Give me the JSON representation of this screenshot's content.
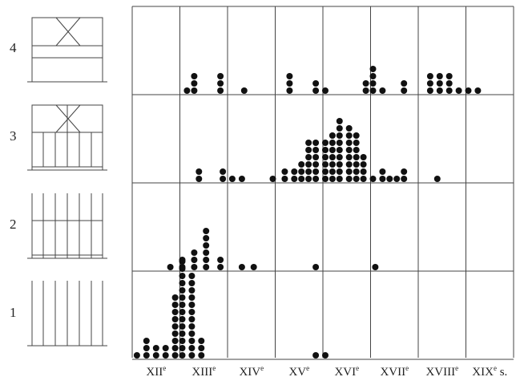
{
  "chart_data": {
    "type": "scatter",
    "subtype": "dot-histogram",
    "title": "",
    "xlabel": "",
    "ylabel": "",
    "rows": [
      "1",
      "2",
      "3",
      "4"
    ],
    "columns": [
      {
        "label": "XII",
        "sup": "e"
      },
      {
        "label": "XIII",
        "sup": "e"
      },
      {
        "label": "XIV",
        "sup": "e"
      },
      {
        "label": "XV",
        "sup": "e"
      },
      {
        "label": "XVI",
        "sup": "e"
      },
      {
        "label": "XVII",
        "sup": "e"
      },
      {
        "label": "XVIII",
        "sup": "e"
      },
      {
        "label": "XIX",
        "sup": "e",
        "suffix": " s."
      }
    ],
    "x_unit_note": "positions are in century units: 0 = start of XII, 8 = end of XIX",
    "series": [
      {
        "row": "1",
        "stacks": [
          {
            "x": 0.1,
            "count": 1
          },
          {
            "x": 0.3,
            "count": 3
          },
          {
            "x": 0.5,
            "count": 2
          },
          {
            "x": 0.7,
            "count": 2
          },
          {
            "x": 0.9,
            "count": 9
          },
          {
            "x": 1.05,
            "count": 14
          },
          {
            "x": 1.25,
            "count": 12
          },
          {
            "x": 1.45,
            "count": 3
          },
          {
            "x": 3.85,
            "count": 1
          },
          {
            "x": 4.05,
            "count": 1
          }
        ]
      },
      {
        "row": "2",
        "stacks": [
          {
            "x": 0.8,
            "count": 1
          },
          {
            "x": 1.05,
            "count": 2
          },
          {
            "x": 1.3,
            "count": 3
          },
          {
            "x": 1.55,
            "count": 6
          },
          {
            "x": 1.85,
            "count": 2
          },
          {
            "x": 2.3,
            "count": 1
          },
          {
            "x": 2.55,
            "count": 1
          },
          {
            "x": 3.85,
            "count": 1
          },
          {
            "x": 5.1,
            "count": 1
          }
        ]
      },
      {
        "row": "3",
        "stacks": [
          {
            "x": 1.4,
            "count": 2
          },
          {
            "x": 1.9,
            "count": 2
          },
          {
            "x": 2.1,
            "count": 1
          },
          {
            "x": 2.3,
            "count": 1
          },
          {
            "x": 2.95,
            "count": 1
          },
          {
            "x": 3.2,
            "count": 2
          },
          {
            "x": 3.4,
            "count": 2
          },
          {
            "x": 3.55,
            "count": 3
          },
          {
            "x": 3.7,
            "count": 6
          },
          {
            "x": 3.85,
            "count": 6
          },
          {
            "x": 4.05,
            "count": 6
          },
          {
            "x": 4.2,
            "count": 7
          },
          {
            "x": 4.35,
            "count": 9
          },
          {
            "x": 4.55,
            "count": 8
          },
          {
            "x": 4.7,
            "count": 7
          },
          {
            "x": 4.85,
            "count": 4
          },
          {
            "x": 5.05,
            "count": 1
          },
          {
            "x": 5.25,
            "count": 2
          },
          {
            "x": 5.4,
            "count": 1
          },
          {
            "x": 5.55,
            "count": 1
          },
          {
            "x": 5.7,
            "count": 2
          },
          {
            "x": 6.4,
            "count": 1
          }
        ]
      },
      {
        "row": "4",
        "stacks": [
          {
            "x": 1.15,
            "count": 1
          },
          {
            "x": 1.3,
            "count": 3
          },
          {
            "x": 1.85,
            "count": 3
          },
          {
            "x": 2.35,
            "count": 1
          },
          {
            "x": 3.3,
            "count": 3
          },
          {
            "x": 3.85,
            "count": 2
          },
          {
            "x": 4.05,
            "count": 1
          },
          {
            "x": 4.9,
            "count": 2
          },
          {
            "x": 5.05,
            "count": 4
          },
          {
            "x": 5.25,
            "count": 1
          },
          {
            "x": 5.7,
            "count": 2
          },
          {
            "x": 6.25,
            "count": 3
          },
          {
            "x": 6.45,
            "count": 3
          },
          {
            "x": 6.65,
            "count": 3
          },
          {
            "x": 6.85,
            "count": 1
          },
          {
            "x": 7.05,
            "count": 1
          },
          {
            "x": 7.25,
            "count": 1
          }
        ]
      }
    ],
    "grid": true
  },
  "colors": {
    "dot": "#111111",
    "line": "#444444"
  }
}
